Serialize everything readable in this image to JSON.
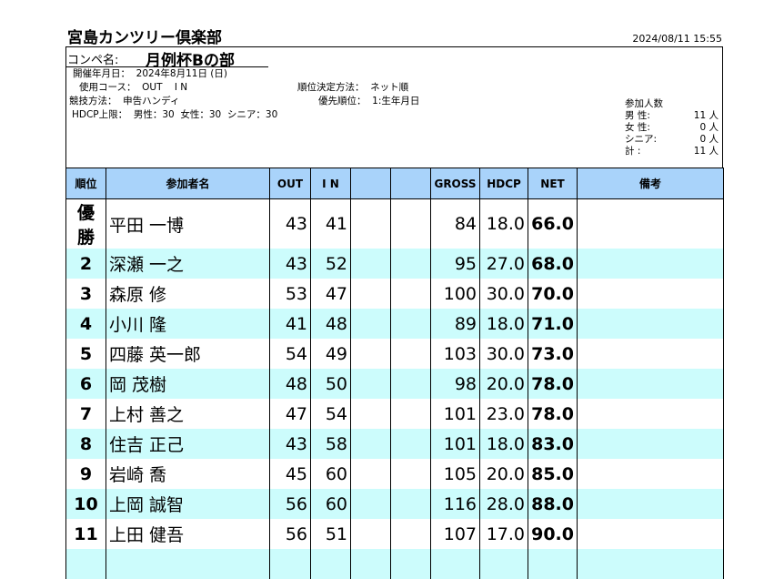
{
  "header": {
    "club": "宮島カンツリー倶楽部",
    "timestamp": "2024/08/11 15:55",
    "comp_label": "コンペ名:",
    "comp_name": "月例杯Bの部"
  },
  "info": {
    "date": "開催年月日：  2024年8月11日 (日)",
    "course": "使用コース：  OUT    I N",
    "ranking_method": "順位決定方法：  ネット順",
    "method": "競技方法：  申告ハンディ",
    "priority": "優先順位：  1:生年月日",
    "hdcp_limit": "HDCP上限：  男性：30  女性：30  シニア：30"
  },
  "participants": {
    "title": "参加人数",
    "rows": [
      {
        "label": "男  性:",
        "value": "11 人"
      },
      {
        "label": "女  性:",
        "value": "0 人"
      },
      {
        "label": "シニア:",
        "value": "0 人"
      },
      {
        "label": "計  :",
        "value": "11 人"
      }
    ]
  },
  "table": {
    "headers": [
      "順位",
      "参加者名",
      "OUT",
      "I N",
      "",
      "",
      "GROSS",
      "HDCP",
      "NET",
      "備考"
    ],
    "rows": [
      {
        "rank": "優勝",
        "name": "平田 一博",
        "out": "43",
        "in": "41",
        "gross": "84",
        "hdcp": "18.0",
        "net": "66.0",
        "note": ""
      },
      {
        "rank": "2",
        "name": "深瀬  一之",
        "out": "43",
        "in": "52",
        "gross": "95",
        "hdcp": "27.0",
        "net": "68.0",
        "note": ""
      },
      {
        "rank": "3",
        "name": "森原  修",
        "out": "53",
        "in": "47",
        "gross": "100",
        "hdcp": "30.0",
        "net": "70.0",
        "note": ""
      },
      {
        "rank": "4",
        "name": "小川  隆",
        "out": "41",
        "in": "48",
        "gross": "89",
        "hdcp": "18.0",
        "net": "71.0",
        "note": ""
      },
      {
        "rank": "5",
        "name": "四藤 英一郎",
        "out": "54",
        "in": "49",
        "gross": "103",
        "hdcp": "30.0",
        "net": "73.0",
        "note": ""
      },
      {
        "rank": "6",
        "name": "岡  茂樹",
        "out": "48",
        "in": "50",
        "gross": "98",
        "hdcp": "20.0",
        "net": "78.0",
        "note": ""
      },
      {
        "rank": "7",
        "name": "上村  善之",
        "out": "47",
        "in": "54",
        "gross": "101",
        "hdcp": "23.0",
        "net": "78.0",
        "note": ""
      },
      {
        "rank": "8",
        "name": "住吉  正己",
        "out": "43",
        "in": "58",
        "gross": "101",
        "hdcp": "18.0",
        "net": "83.0",
        "note": ""
      },
      {
        "rank": "9",
        "name": "岩崎  喬",
        "out": "45",
        "in": "60",
        "gross": "105",
        "hdcp": "20.0",
        "net": "85.0",
        "note": ""
      },
      {
        "rank": "10",
        "name": "上岡  誠智",
        "out": "56",
        "in": "60",
        "gross": "116",
        "hdcp": "28.0",
        "net": "88.0",
        "note": ""
      },
      {
        "rank": "11",
        "name": "上田  健吾",
        "out": "56",
        "in": "51",
        "gross": "107",
        "hdcp": "17.0",
        "net": "90.0",
        "note": ""
      }
    ]
  }
}
